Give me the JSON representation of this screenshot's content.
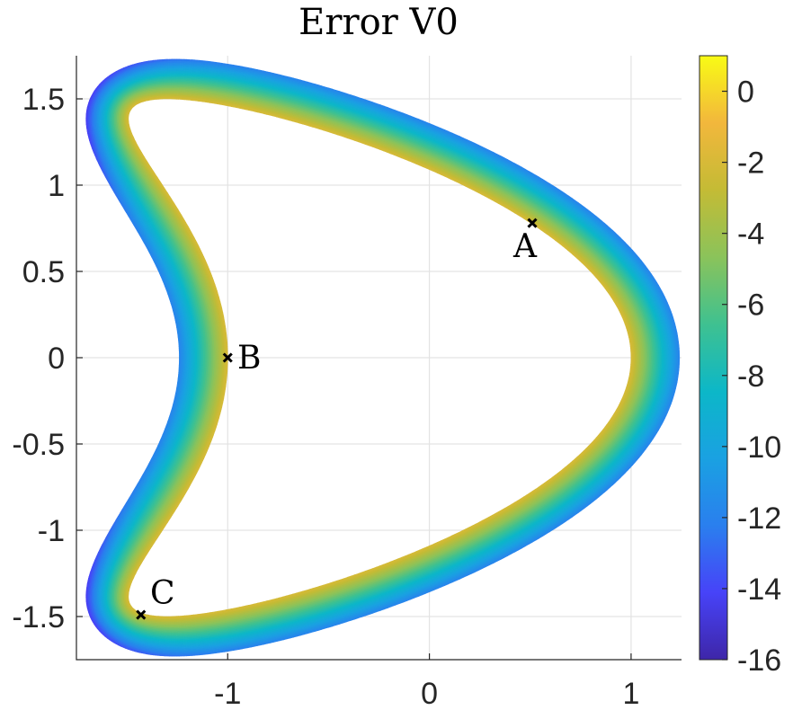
{
  "chart_data": {
    "type": "heatmap",
    "title": "Error V0",
    "xlabel": "",
    "ylabel": "",
    "xlim": [
      -1.75,
      1.25
    ],
    "ylim": [
      -1.75,
      1.75
    ],
    "xticks": [
      -1,
      0,
      1
    ],
    "xtick_labels": [
      "-1",
      "0",
      "1"
    ],
    "yticks": [
      1.5,
      1,
      0.5,
      0,
      -0.5,
      -1,
      -1.5
    ],
    "ytick_labels": [
      "1.5",
      "1",
      "0.5",
      "0",
      "-0.5",
      "-1",
      "-1.5"
    ],
    "grid": true,
    "colorbar": {
      "colormap": "parula",
      "range": [
        -16,
        1
      ],
      "ticks": [
        0,
        -2,
        -4,
        -6,
        -8,
        -10,
        -12,
        -14,
        -16
      ],
      "tick_labels": [
        "0",
        "-2",
        "-4",
        "-6",
        "-8",
        "-10",
        "-12",
        "-14",
        "-16"
      ],
      "colors": [
        "#3e26a8",
        "#4743f8",
        "#2a7fee",
        "#1aa1e2",
        "#0cb7c8",
        "#3fc190",
        "#8bc35a",
        "#c4bb35",
        "#f2b73c",
        "#f9fb15"
      ]
    },
    "band": {
      "inner_curve_error": -2,
      "outer_curve_error": -12,
      "cusp_outer_error": -14.5
    },
    "annotations": [
      {
        "label": "A",
        "x": 0.51,
        "y": 0.78,
        "marker": "x"
      },
      {
        "label": "B",
        "x": -1.0,
        "y": 0.0,
        "marker": "x"
      },
      {
        "label": "C",
        "x": -1.43,
        "y": -1.49,
        "marker": "x"
      }
    ]
  }
}
